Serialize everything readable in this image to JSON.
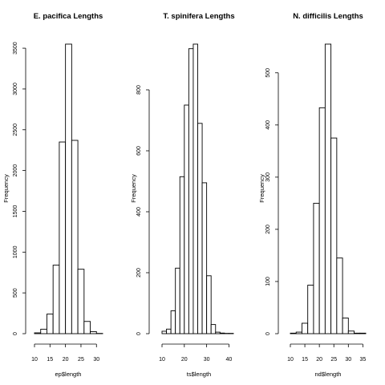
{
  "chart_data": [
    {
      "type": "histogram",
      "title": "E. pacifica Lengths",
      "xlabel": "ep$length",
      "ylabel": "Frequency",
      "bin_width": 2,
      "bins": [
        {
          "x0": 10,
          "x1": 12,
          "count": 10
        },
        {
          "x0": 12,
          "x1": 14,
          "count": 55
        },
        {
          "x0": 14,
          "x1": 16,
          "count": 240
        },
        {
          "x0": 16,
          "x1": 18,
          "count": 840
        },
        {
          "x0": 18,
          "x1": 20,
          "count": 2350
        },
        {
          "x0": 20,
          "x1": 22,
          "count": 3550
        },
        {
          "x0": 22,
          "x1": 24,
          "count": 2370
        },
        {
          "x0": 24,
          "x1": 26,
          "count": 790
        },
        {
          "x0": 26,
          "x1": 28,
          "count": 150
        },
        {
          "x0": 28,
          "x1": 30,
          "count": 25
        },
        {
          "x0": 30,
          "x1": 32,
          "count": 3
        }
      ],
      "xlim": [
        10,
        32
      ],
      "ylim": [
        0,
        3550
      ],
      "x_ticks": [
        10,
        15,
        20,
        25,
        30
      ],
      "y_ticks": [
        0,
        500,
        1000,
        1500,
        2000,
        2500,
        3000,
        3500
      ],
      "grid": false
    },
    {
      "type": "histogram",
      "title": "T. spinifera Lengths",
      "xlabel": "ts$length",
      "ylabel": "Frequency",
      "bin_width": 2,
      "bins": [
        {
          "x0": 10,
          "x1": 12,
          "count": 8
        },
        {
          "x0": 12,
          "x1": 14,
          "count": 15
        },
        {
          "x0": 14,
          "x1": 16,
          "count": 75
        },
        {
          "x0": 16,
          "x1": 18,
          "count": 215
        },
        {
          "x0": 18,
          "x1": 20,
          "count": 515
        },
        {
          "x0": 20,
          "x1": 22,
          "count": 750
        },
        {
          "x0": 22,
          "x1": 24,
          "count": 935
        },
        {
          "x0": 24,
          "x1": 26,
          "count": 950
        },
        {
          "x0": 26,
          "x1": 28,
          "count": 690
        },
        {
          "x0": 28,
          "x1": 30,
          "count": 495
        },
        {
          "x0": 30,
          "x1": 32,
          "count": 190
        },
        {
          "x0": 32,
          "x1": 34,
          "count": 30
        },
        {
          "x0": 34,
          "x1": 36,
          "count": 5
        },
        {
          "x0": 36,
          "x1": 38,
          "count": 2
        },
        {
          "x0": 38,
          "x1": 40,
          "count": 1
        },
        {
          "x0": 40,
          "x1": 42,
          "count": 1
        }
      ],
      "xlim": [
        10,
        42
      ],
      "ylim": [
        0,
        950
      ],
      "x_ticks": [
        10,
        20,
        30,
        40
      ],
      "y_ticks": [
        0,
        200,
        400,
        600,
        800
      ],
      "grid": false
    },
    {
      "type": "histogram",
      "title": "N. difficilis Lengths",
      "xlabel": "nd$length",
      "ylabel": "Frequency",
      "bin_width": 2,
      "bins": [
        {
          "x0": 10,
          "x1": 12,
          "count": 1
        },
        {
          "x0": 12,
          "x1": 14,
          "count": 3
        },
        {
          "x0": 14,
          "x1": 16,
          "count": 20
        },
        {
          "x0": 16,
          "x1": 18,
          "count": 93
        },
        {
          "x0": 18,
          "x1": 20,
          "count": 250
        },
        {
          "x0": 20,
          "x1": 22,
          "count": 433
        },
        {
          "x0": 22,
          "x1": 24,
          "count": 555
        },
        {
          "x0": 24,
          "x1": 26,
          "count": 375
        },
        {
          "x0": 26,
          "x1": 28,
          "count": 145
        },
        {
          "x0": 28,
          "x1": 30,
          "count": 30
        },
        {
          "x0": 30,
          "x1": 32,
          "count": 5
        },
        {
          "x0": 32,
          "x1": 34,
          "count": 1
        },
        {
          "x0": 34,
          "x1": 36,
          "count": 1
        }
      ],
      "xlim": [
        10,
        36
      ],
      "ylim": [
        0,
        555
      ],
      "x_ticks": [
        10,
        15,
        20,
        25,
        30,
        35
      ],
      "y_ticks": [
        0,
        100,
        200,
        300,
        400,
        500
      ],
      "grid": false
    }
  ]
}
